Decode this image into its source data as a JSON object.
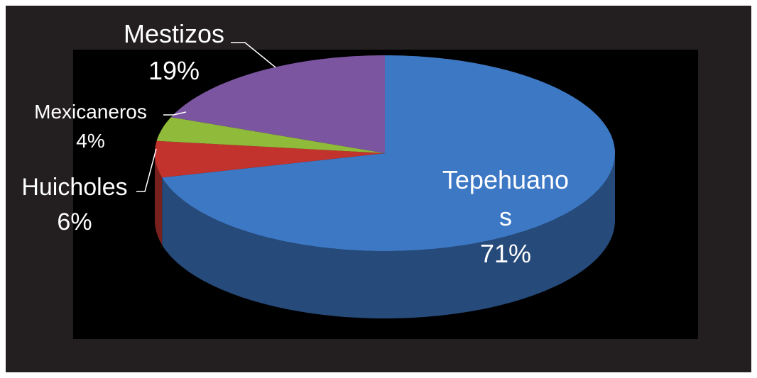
{
  "chart_data": {
    "type": "pie",
    "categories": [
      "Tepehuanos",
      "Huicholes",
      "Mexicaneros",
      "Mestizos"
    ],
    "values": [
      71,
      6,
      4,
      19
    ],
    "value_labels": [
      "71%",
      "6%",
      "4%",
      "19%"
    ],
    "colors": [
      "#3d78c4",
      "#c2332e",
      "#8fba3a",
      "#7b55a0"
    ]
  }
}
